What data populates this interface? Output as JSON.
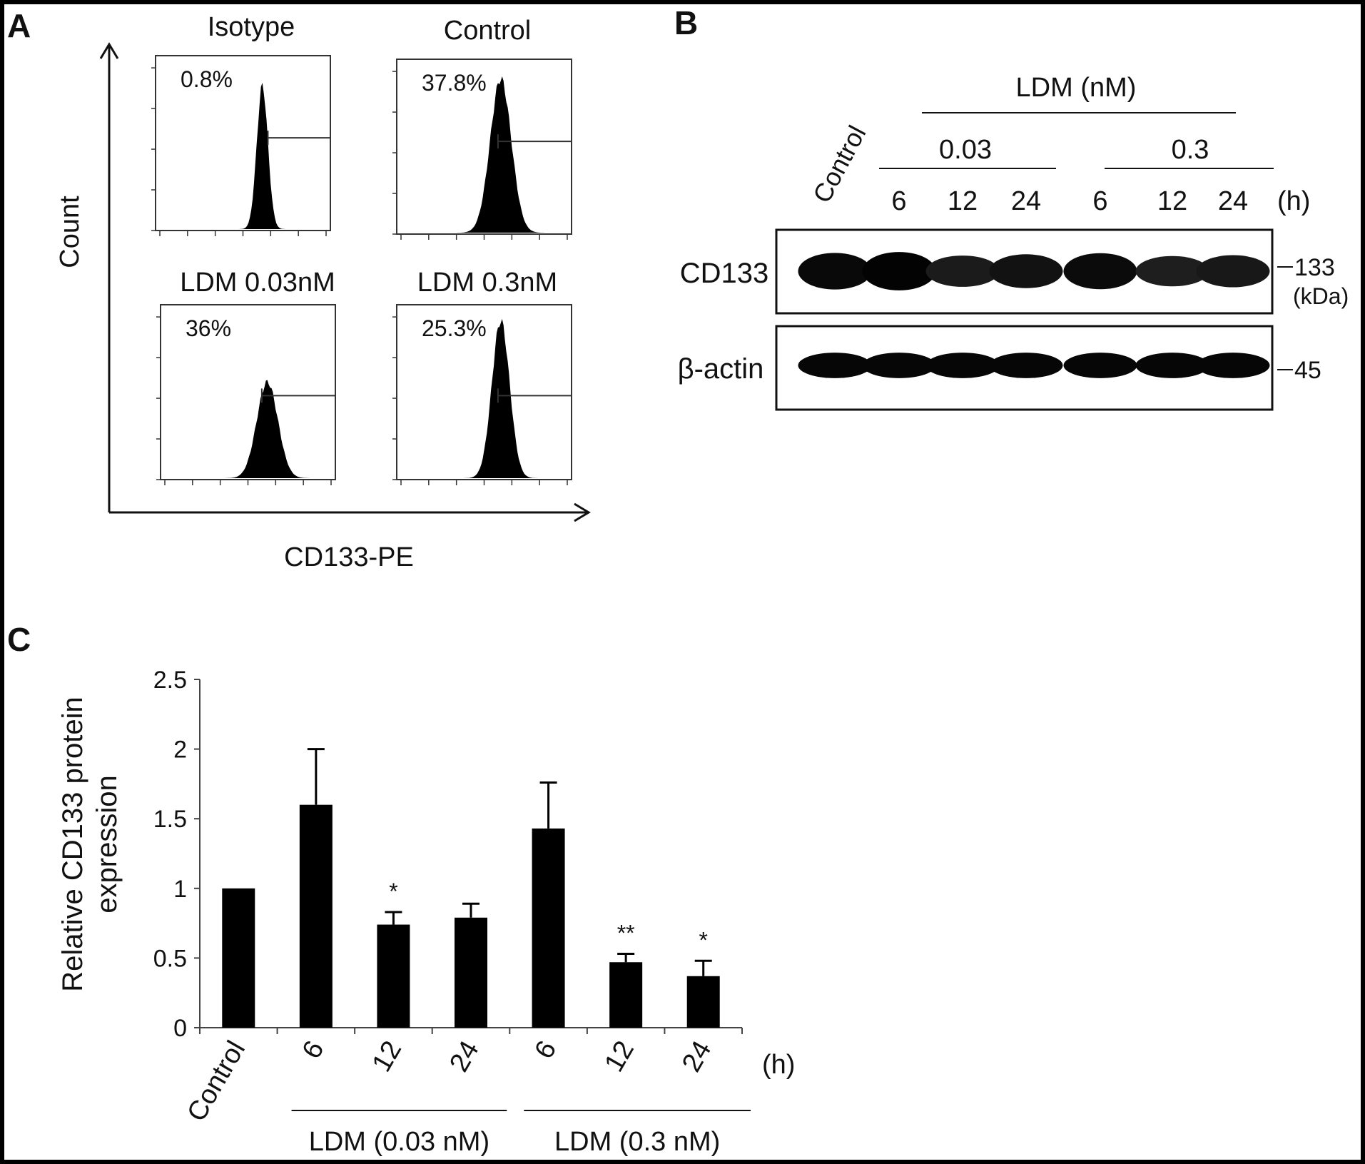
{
  "panel_labels": {
    "a": "A",
    "b": "B",
    "c": "C"
  },
  "panel_a": {
    "y_axis_label": "Count",
    "x_axis_label": "CD133-PE",
    "histograms": [
      {
        "title": "Isotype",
        "percent": "0.8%",
        "peak_decade": 3.7,
        "peak_height": 0.82,
        "spread": 0.2
      },
      {
        "title": "Control",
        "percent": "37.8%",
        "peak_decade": 3.6,
        "peak_height": 0.88,
        "spread": 0.38
      },
      {
        "title": "LDM 0.03nM",
        "percent": "36%",
        "peak_decade": 3.7,
        "peak_height": 0.55,
        "spread": 0.38
      },
      {
        "title": "LDM 0.3nM",
        "percent": "25.3%",
        "peak_decade": 3.6,
        "peak_height": 0.9,
        "spread": 0.32
      }
    ]
  },
  "panel_b": {
    "group_label": "LDM (nM)",
    "control_label": "Control",
    "doses": [
      "0.03",
      "0.3"
    ],
    "timepoints": [
      "6",
      "12",
      "24",
      "6",
      "12",
      "24"
    ],
    "time_unit": "(h)",
    "rows": [
      {
        "label": "CD133",
        "marker": "133",
        "unit": "(kDa)",
        "intensities": [
          0.85,
          0.95,
          0.55,
          0.7,
          0.82,
          0.5,
          0.6
        ]
      },
      {
        "label": "β-actin",
        "marker": "45",
        "unit": "",
        "intensities": [
          0.9,
          0.9,
          0.9,
          0.9,
          0.9,
          0.9,
          0.9
        ]
      }
    ]
  },
  "chart_data": {
    "type": "bar",
    "ylabel": "Relative CD133 protein expression",
    "ylabel_lines": [
      "Relative CD133 protein",
      "expression"
    ],
    "ylim": [
      0,
      2.5
    ],
    "yticks": [
      "0",
      "0.5",
      "1",
      "1.5",
      "2",
      "2.5"
    ],
    "categories": [
      "Control",
      "6",
      "12",
      "24",
      "6",
      "12",
      "24"
    ],
    "values": [
      1.0,
      1.6,
      0.74,
      0.79,
      1.43,
      0.47,
      0.37
    ],
    "errors": [
      0,
      0.4,
      0.09,
      0.1,
      0.33,
      0.06,
      0.11
    ],
    "significance": [
      "",
      "",
      "*",
      "",
      "",
      "**",
      "*"
    ],
    "time_unit": "(h)",
    "groups": [
      {
        "label": "LDM (0.03 nM)",
        "from": 1,
        "to": 3
      },
      {
        "label": "LDM (0.3 nM)",
        "from": 4,
        "to": 6
      }
    ],
    "colors": {
      "bar": "#000000"
    }
  }
}
